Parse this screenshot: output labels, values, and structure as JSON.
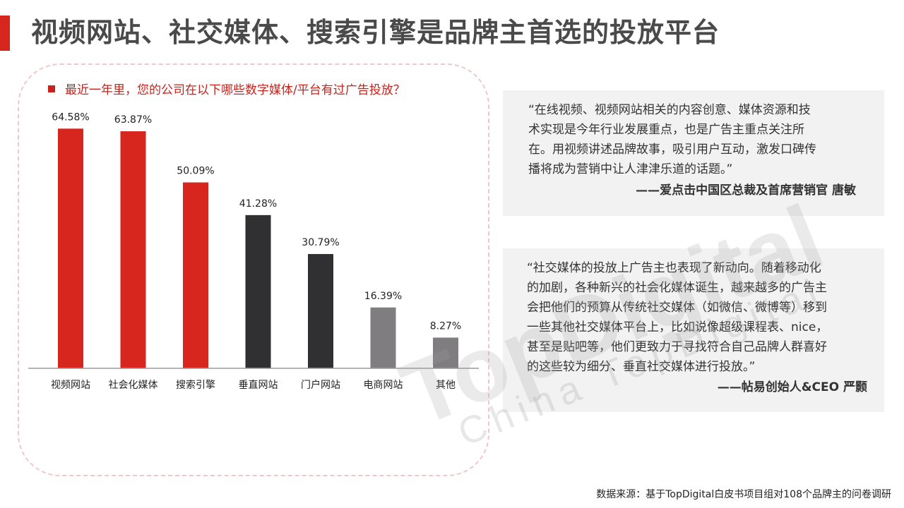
{
  "title": "视频网站、社交媒体、搜索引擎是品牌主首选的投放平台",
  "question": "最近一年里，您的公司在以下哪些数字媒体/平台有过广告投放？",
  "colors": {
    "accent": "#d7261e",
    "bar_red": "#d7261e",
    "bar_dark": "#303032",
    "bar_gray": "#7f7d80",
    "quote_bg": "#f2f2f2"
  },
  "chart_data": {
    "type": "bar",
    "categories": [
      "视频网站",
      "社会化媒体",
      "搜索引擎",
      "垂直网站",
      "门户网站",
      "电商网站",
      "其他"
    ],
    "values": [
      64.58,
      63.87,
      50.09,
      41.28,
      30.79,
      16.39,
      8.27
    ],
    "value_labels": [
      "64.58%",
      "63.87%",
      "50.09%",
      "41.28%",
      "30.79%",
      "16.39%",
      "8.27%"
    ],
    "bar_colors": [
      "#d7261e",
      "#d7261e",
      "#d7261e",
      "#303032",
      "#303032",
      "#7f7d80",
      "#7f7d80"
    ],
    "unit": "%",
    "ylim": [
      0,
      70
    ],
    "grid": false,
    "title": "",
    "xlabel": "",
    "ylabel": ""
  },
  "quotes": [
    {
      "lines": [
        "“在线视频、视频网站相关的内容创意、媒体资源和技",
        "术实现是今年行业发展重点，也是广告主重点关注所",
        "在。用视频讲述品牌故事，吸引用户互动，激发口碑传",
        "播将成为营销中让人津津乐道的话题。”"
      ],
      "author": "——爱点击中国区总裁及首席营销官 唐敏"
    },
    {
      "lines": [
        "“社交媒体的投放上广告主也表现了新动向。随着移动化",
        "的加剧，各种新兴的社会化媒体诞生，越来越多的广告主",
        "会把他们的预算从传统社交媒体（如微信、微博等）移到",
        "一些其他社交媒体平台上，比如说像超级课程表、nice，",
        "甚至是贴吧等，他们更致力于寻找符合自己品牌人群喜好",
        "的这些较为细分、垂直社交媒体进行投放。”"
      ],
      "author": "——帖易创始人&CEO 严颢"
    }
  ],
  "watermark": {
    "brand": "TopDigital",
    "tagline": "China TopDigital"
  },
  "source": "数据来源：基于TopDigital白皮书项目组对108个品牌主的问卷调研"
}
